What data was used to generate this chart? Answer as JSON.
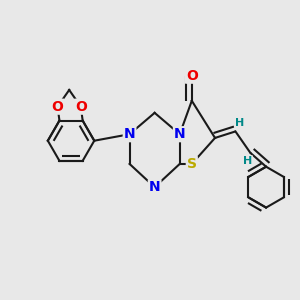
{
  "background_color": "#e8e8e8",
  "bond_color": "#1a1a1a",
  "atom_colors": {
    "N": "#0000ee",
    "O": "#ee0000",
    "S": "#bbaa00",
    "H": "#008888",
    "C": "#1a1a1a"
  },
  "bond_lw": 1.5,
  "font_size_atom": 10,
  "font_size_H": 8
}
